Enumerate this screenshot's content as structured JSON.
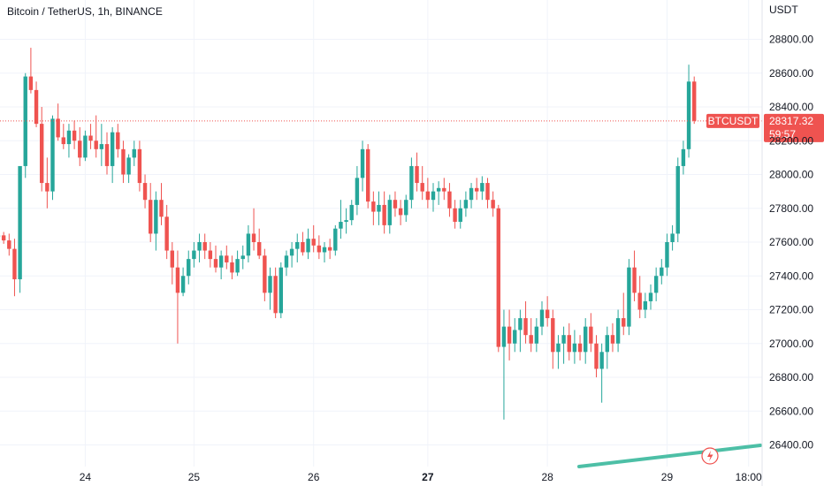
{
  "header": {
    "title": "Bitcoin / TetherUS, 1h, BINANCE"
  },
  "axis": {
    "currency_label": "USDT"
  },
  "price_tag": {
    "symbol": "BTCUSDT",
    "price": "28317.32",
    "countdown": "59:57"
  },
  "colors": {
    "up": "#26a69a",
    "down": "#ef5350",
    "grid": "#f0f3fa",
    "text": "#131722",
    "indicator": "#4dbfa6"
  },
  "chart_data": {
    "type": "candlestick",
    "title": "Bitcoin / TetherUS, 1h, BINANCE",
    "ylabel": "USDT",
    "ylim": [
      26300,
      28950
    ],
    "y_ticks": [
      26400,
      26600,
      26800,
      27000,
      27200,
      27400,
      27600,
      27800,
      28000,
      28200,
      28400,
      28600,
      28800
    ],
    "y_tick_labels": [
      "26400.00",
      "26600.00",
      "26800.00",
      "27000.00",
      "27200.00",
      "27400.00",
      "27600.00",
      "27800.00",
      "28000.00",
      "28200.00",
      "28400.00",
      "28600.00",
      "28800.00"
    ],
    "x_labels": [
      "24",
      "25",
      "26",
      "27",
      "28",
      "29",
      "18:00"
    ],
    "x_label_candle_index": [
      16,
      36,
      58,
      79,
      101,
      123,
      138
    ],
    "last_price": 28317.32,
    "candles": [
      [
        27630,
        27660,
        27600,
        27640
      ],
      [
        27640,
        27660,
        27590,
        27610
      ],
      [
        27610,
        27650,
        27520,
        27560
      ],
      [
        27560,
        27620,
        27280,
        27380
      ],
      [
        27380,
        28050,
        27300,
        28050
      ],
      [
        28050,
        28600,
        27980,
        28580
      ],
      [
        28580,
        28750,
        28480,
        28500
      ],
      [
        28500,
        28550,
        28280,
        28300
      ],
      [
        28300,
        28400,
        27900,
        27950
      ],
      [
        27950,
        28100,
        27800,
        27900
      ],
      [
        27900,
        28350,
        27850,
        28330
      ],
      [
        28330,
        28420,
        28200,
        28220
      ],
      [
        28220,
        28300,
        28150,
        28180
      ],
      [
        28180,
        28300,
        28100,
        28260
      ],
      [
        28260,
        28320,
        28150,
        28200
      ],
      [
        28200,
        28280,
        28050,
        28100
      ],
      [
        28100,
        28260,
        28080,
        28230
      ],
      [
        28230,
        28300,
        28150,
        28200
      ],
      [
        28200,
        28350,
        28100,
        28150
      ],
      [
        28150,
        28300,
        28050,
        28180
      ],
      [
        28180,
        28250,
        28000,
        28050
      ],
      [
        28050,
        28280,
        27950,
        28250
      ],
      [
        28250,
        28300,
        28100,
        28150
      ],
      [
        28150,
        28200,
        27950,
        28000
      ],
      [
        28000,
        28120,
        27950,
        28100
      ],
      [
        28100,
        28200,
        28050,
        28150
      ],
      [
        28150,
        28200,
        27900,
        27950
      ],
      [
        27950,
        28000,
        27800,
        27850
      ],
      [
        27850,
        27950,
        27600,
        27650
      ],
      [
        27650,
        27900,
        27550,
        27850
      ],
      [
        27850,
        27950,
        27700,
        27750
      ],
      [
        27750,
        27820,
        27500,
        27550
      ],
      [
        27550,
        27600,
        27350,
        27450
      ],
      [
        27450,
        27550,
        27000,
        27300
      ],
      [
        27300,
        27450,
        27280,
        27400
      ],
      [
        27400,
        27550,
        27350,
        27500
      ],
      [
        27500,
        27600,
        27450,
        27550
      ],
      [
        27550,
        27650,
        27480,
        27600
      ],
      [
        27600,
        27650,
        27500,
        27550
      ],
      [
        27550,
        27600,
        27450,
        27500
      ],
      [
        27500,
        27580,
        27420,
        27450
      ],
      [
        27450,
        27550,
        27380,
        27520
      ],
      [
        27520,
        27580,
        27440,
        27480
      ],
      [
        27480,
        27520,
        27380,
        27420
      ],
      [
        27420,
        27550,
        27400,
        27500
      ],
      [
        27500,
        27580,
        27440,
        27520
      ],
      [
        27520,
        27700,
        27480,
        27650
      ],
      [
        27650,
        27800,
        27550,
        27600
      ],
      [
        27600,
        27680,
        27500,
        27520
      ],
      [
        27520,
        27560,
        27250,
        27300
      ],
      [
        27300,
        27450,
        27200,
        27400
      ],
      [
        27400,
        27450,
        27150,
        27180
      ],
      [
        27180,
        27480,
        27150,
        27450
      ],
      [
        27450,
        27550,
        27400,
        27520
      ],
      [
        27520,
        27600,
        27450,
        27560
      ],
      [
        27560,
        27650,
        27480,
        27600
      ],
      [
        27600,
        27660,
        27520,
        27540
      ],
      [
        27540,
        27680,
        27500,
        27620
      ],
      [
        27620,
        27700,
        27540,
        27580
      ],
      [
        27580,
        27640,
        27500,
        27540
      ],
      [
        27540,
        27600,
        27480,
        27570
      ],
      [
        27570,
        27620,
        27500,
        27550
      ],
      [
        27550,
        27700,
        27520,
        27680
      ],
      [
        27680,
        27850,
        27620,
        27720
      ],
      [
        27720,
        27800,
        27650,
        27730
      ],
      [
        27730,
        27850,
        27700,
        27820
      ],
      [
        27820,
        28050,
        27760,
        27980
      ],
      [
        27980,
        28200,
        27900,
        28150
      ],
      [
        28150,
        28180,
        27800,
        27840
      ],
      [
        27840,
        27900,
        27700,
        27780
      ],
      [
        27780,
        27900,
        27700,
        27820
      ],
      [
        27820,
        27900,
        27650,
        27700
      ],
      [
        27700,
        27880,
        27650,
        27850
      ],
      [
        27850,
        27900,
        27750,
        27800
      ],
      [
        27800,
        27850,
        27700,
        27760
      ],
      [
        27760,
        27880,
        27720,
        27850
      ],
      [
        27850,
        28100,
        27800,
        28050
      ],
      [
        28050,
        28130,
        27900,
        27950
      ],
      [
        27950,
        28050,
        27850,
        27900
      ],
      [
        27900,
        27980,
        27800,
        27850
      ],
      [
        27850,
        27950,
        27780,
        27900
      ],
      [
        27900,
        27960,
        27820,
        27920
      ],
      [
        27920,
        27980,
        27850,
        27900
      ],
      [
        27900,
        27950,
        27750,
        27800
      ],
      [
        27800,
        27850,
        27680,
        27720
      ],
      [
        27720,
        27850,
        27680,
        27800
      ],
      [
        27800,
        27900,
        27750,
        27850
      ],
      [
        27850,
        27950,
        27800,
        27920
      ],
      [
        27920,
        27980,
        27850,
        27900
      ],
      [
        27900,
        27990,
        27850,
        27950
      ],
      [
        27950,
        27980,
        27800,
        27850
      ],
      [
        27850,
        27900,
        27750,
        27800
      ],
      [
        27800,
        27820,
        26950,
        26980
      ],
      [
        26980,
        27200,
        26550,
        27100
      ],
      [
        27100,
        27200,
        26900,
        27000
      ],
      [
        27000,
        27150,
        26950,
        27080
      ],
      [
        27080,
        27200,
        26950,
        27150
      ],
      [
        27150,
        27250,
        27000,
        27050
      ],
      [
        27050,
        27150,
        26950,
        27000
      ],
      [
        27000,
        27150,
        26950,
        27100
      ],
      [
        27100,
        27250,
        27050,
        27200
      ],
      [
        27200,
        27280,
        27100,
        27150
      ],
      [
        27150,
        27200,
        26850,
        26950
      ],
      [
        26950,
        27050,
        26850,
        27000
      ],
      [
        27000,
        27100,
        26880,
        27050
      ],
      [
        27050,
        27120,
        26900,
        26950
      ],
      [
        26950,
        27080,
        26880,
        27000
      ],
      [
        27000,
        27050,
        26900,
        26950
      ],
      [
        26950,
        27150,
        26880,
        27100
      ],
      [
        27100,
        27180,
        26950,
        27000
      ],
      [
        27000,
        27050,
        26800,
        26850
      ],
      [
        26850,
        27000,
        26650,
        26950
      ],
      [
        26950,
        27100,
        26850,
        27050
      ],
      [
        27050,
        27120,
        26950,
        27000
      ],
      [
        27000,
        27200,
        26950,
        27150
      ],
      [
        27150,
        27300,
        27050,
        27100
      ],
      [
        27100,
        27500,
        27050,
        27450
      ],
      [
        27450,
        27550,
        27250,
        27300
      ],
      [
        27300,
        27400,
        27150,
        27200
      ],
      [
        27200,
        27300,
        27150,
        27250
      ],
      [
        27250,
        27350,
        27200,
        27300
      ],
      [
        27300,
        27450,
        27250,
        27400
      ],
      [
        27400,
        27500,
        27350,
        27450
      ],
      [
        27450,
        27650,
        27400,
        27600
      ],
      [
        27600,
        27700,
        27550,
        27650
      ],
      [
        27650,
        28100,
        27600,
        28050
      ],
      [
        28050,
        28200,
        28000,
        28150
      ],
      [
        28150,
        28650,
        28100,
        28550
      ],
      [
        28550,
        28580,
        28300,
        28317.32
      ]
    ]
  }
}
